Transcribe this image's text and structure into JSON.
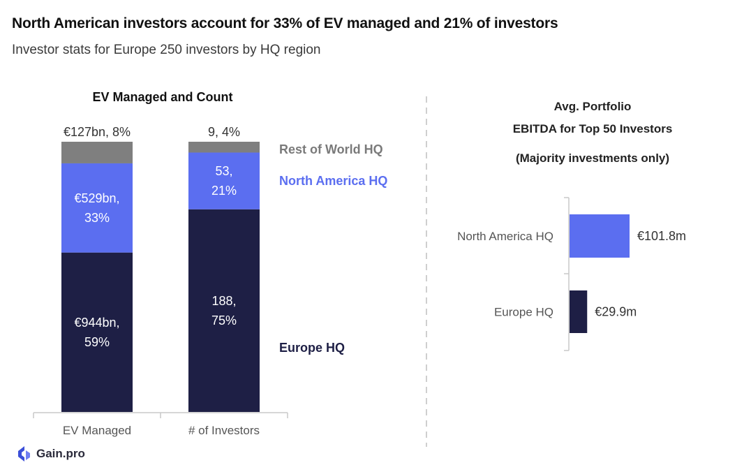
{
  "header": {
    "title": "North American investors account for 33% of EV managed and 21% of investors",
    "subtitle": "Investor stats for Europe 250 investors by HQ region"
  },
  "colors": {
    "europe": "#1e1f45",
    "north_america": "#5b6ef0",
    "rest_of_world": "#7f7f7f",
    "axis": "#c8c8c8",
    "divider": "#cfcfcf"
  },
  "chart_data": [
    {
      "type": "bar",
      "stacked": true,
      "title": "EV Managed and Count",
      "categories": [
        "EV Managed",
        "# of Investors"
      ],
      "series": [
        {
          "name": "Europe HQ",
          "values": [
            59,
            75
          ],
          "labels": [
            "€944bn,|59%",
            "188,|75%"
          ],
          "label_color": "#ffffff"
        },
        {
          "name": "North America HQ",
          "values": [
            33,
            21
          ],
          "labels": [
            "€529bn,|33%",
            "53,|21%"
          ],
          "label_color": "#ffffff"
        },
        {
          "name": "Rest of World HQ",
          "values": [
            8,
            4
          ],
          "labels": [
            "€127bn, 8%",
            "9, 4%"
          ],
          "label_color": "#333333"
        }
      ],
      "ylim": [
        0,
        100
      ],
      "legend": "right, series labels aligned to bar segments"
    },
    {
      "type": "bar",
      "orientation": "horizontal",
      "title_lines": [
        "Avg. Portfolio",
        "EBITDA for Top 50 Investors",
        "",
        "(Majority investments only)"
      ],
      "categories": [
        "North America HQ",
        "Europe HQ"
      ],
      "values": [
        101.8,
        29.9
      ],
      "value_labels": [
        "€101.8m",
        "€29.9m"
      ],
      "colors": [
        "#5b6ef0",
        "#1e1f45"
      ],
      "xlim": [
        0,
        101.8
      ]
    }
  ],
  "footer": {
    "brand": "Gain.pro"
  }
}
